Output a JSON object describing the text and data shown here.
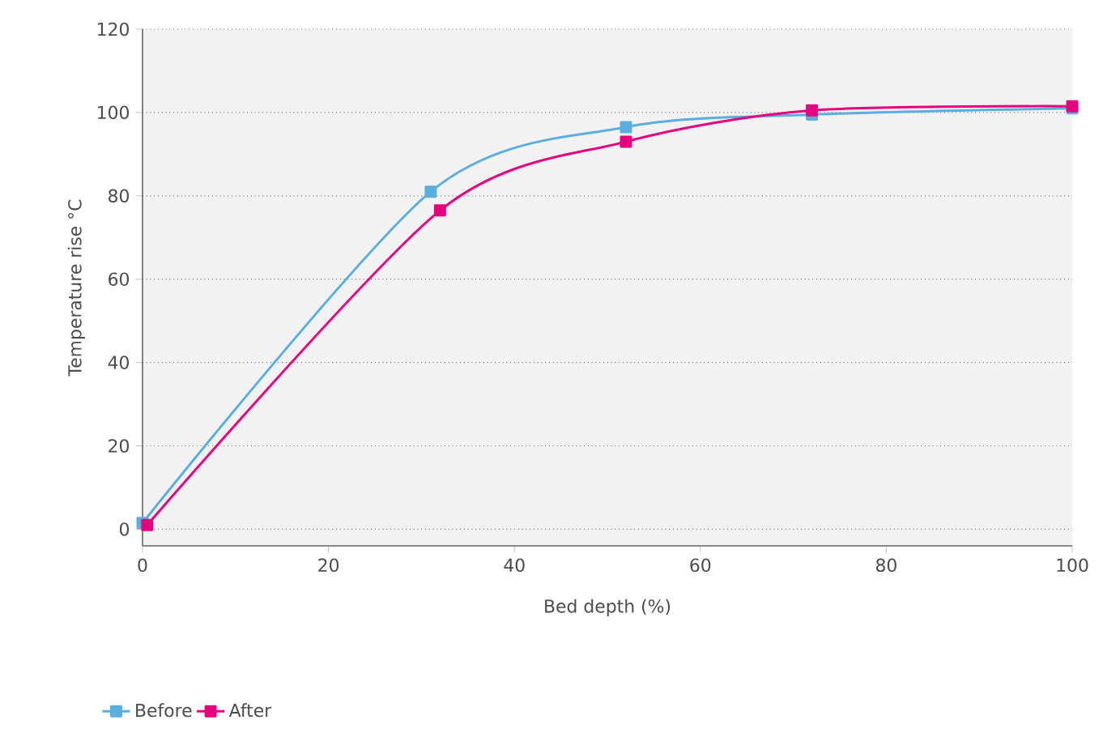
{
  "chart_data": {
    "type": "line",
    "xlabel": "Bed depth (%)",
    "ylabel": "Temperature rise °C",
    "x": [
      0,
      31,
      52,
      72,
      100
    ],
    "series": [
      {
        "name": "Before",
        "color": "#5aafe0",
        "values": [
          1.5,
          81,
          96.5,
          99.5,
          101
        ]
      },
      {
        "name": "After",
        "color": "#e6007e",
        "x": [
          0.5,
          32,
          52,
          72,
          100
        ],
        "values": [
          1,
          76.5,
          93,
          100.5,
          101.5
        ]
      }
    ],
    "xlim": [
      0,
      100
    ],
    "ylim": [
      -4,
      120
    ],
    "xticks": [
      0,
      20,
      40,
      60,
      80,
      100
    ],
    "yticks": [
      0,
      20,
      40,
      60,
      80,
      100,
      120
    ],
    "grid": "y",
    "legend": "bottom left",
    "marker": "square",
    "line_style": "solid"
  }
}
